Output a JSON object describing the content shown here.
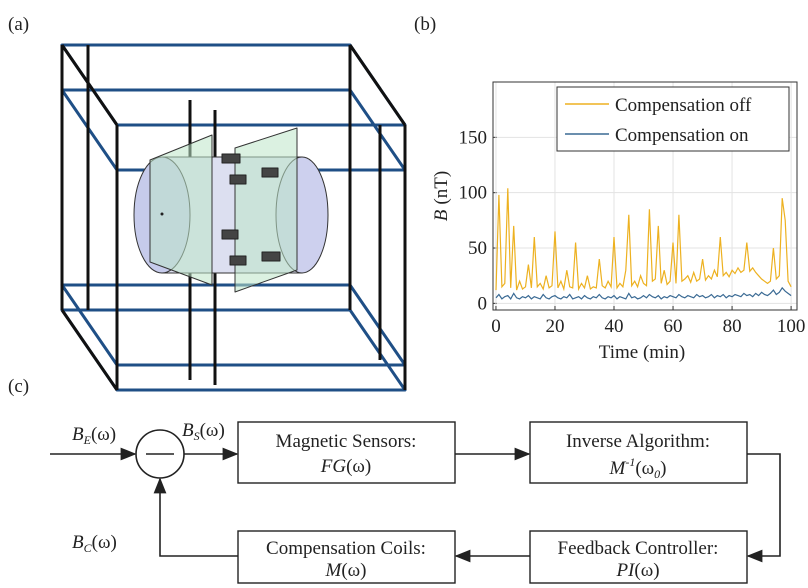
{
  "panels": {
    "a": "(a)",
    "b": "(b)",
    "c": "(c)"
  },
  "chart_data": {
    "type": "line",
    "x_label": "Time (min)",
    "y_label_symbol": "B",
    "y_label_unit": "(nT)",
    "x": [
      0,
      1,
      2,
      3,
      4,
      5,
      6,
      7,
      8,
      9,
      10,
      11,
      12,
      13,
      14,
      15,
      16,
      17,
      18,
      19,
      20,
      21,
      22,
      23,
      24,
      25,
      26,
      27,
      28,
      29,
      30,
      31,
      32,
      33,
      34,
      35,
      36,
      37,
      38,
      39,
      40,
      41,
      42,
      43,
      44,
      45,
      46,
      47,
      48,
      49,
      50,
      51,
      52,
      53,
      54,
      55,
      56,
      57,
      58,
      59,
      60,
      61,
      62,
      63,
      64,
      65,
      66,
      67,
      68,
      69,
      70,
      71,
      72,
      73,
      74,
      75,
      76,
      77,
      78,
      79,
      80,
      81,
      82,
      83,
      84,
      85,
      86,
      87,
      88,
      89,
      90,
      91,
      92,
      93,
      94,
      95,
      96,
      97,
      98,
      99,
      100
    ],
    "series": [
      {
        "name": "Compensation off",
        "color": "#EDB120",
        "values": [
          12,
          98,
          15,
          18,
          104,
          14,
          70,
          12,
          20,
          13,
          15,
          35,
          14,
          60,
          15,
          18,
          13,
          25,
          14,
          16,
          65,
          14,
          20,
          13,
          30,
          15,
          14,
          55,
          13,
          18,
          14,
          25,
          13,
          15,
          14,
          40,
          16,
          14,
          20,
          15,
          60,
          14,
          18,
          15,
          30,
          80,
          16,
          20,
          15,
          25,
          18,
          16,
          85,
          20,
          22,
          70,
          18,
          30,
          17,
          20,
          55,
          18,
          80,
          20,
          22,
          25,
          19,
          28,
          20,
          22,
          40,
          21,
          25,
          22,
          30,
          24,
          60,
          25,
          28,
          24,
          30,
          27,
          32,
          28,
          30,
          55,
          29,
          32,
          28,
          25,
          22,
          20,
          18,
          20,
          50,
          22,
          25,
          95,
          75,
          20,
          15
        ]
      },
      {
        "name": "Compensation on",
        "color": "#3A6A94",
        "values": [
          5,
          8,
          4,
          6,
          7,
          4,
          9,
          5,
          4,
          6,
          5,
          7,
          4,
          6,
          5,
          4,
          8,
          5,
          4,
          6,
          7,
          5,
          4,
          6,
          5,
          8,
          4,
          5,
          6,
          4,
          7,
          5,
          4,
          6,
          5,
          8,
          5,
          4,
          6,
          5,
          7,
          4,
          6,
          5,
          4,
          9,
          5,
          6,
          4,
          5,
          7,
          5,
          8,
          6,
          5,
          7,
          4,
          6,
          5,
          7,
          6,
          5,
          8,
          6,
          5,
          7,
          6,
          5,
          8,
          6,
          7,
          5,
          6,
          8,
          5,
          7,
          6,
          8,
          5,
          7,
          6,
          8,
          7,
          6,
          9,
          7,
          8,
          6,
          9,
          7,
          10,
          8,
          7,
          9,
          12,
          8,
          10,
          14,
          11,
          9,
          7
        ]
      }
    ],
    "xlim": [
      -1,
      102
    ],
    "ylim": [
      -6,
      200
    ],
    "xticks": [
      0,
      20,
      40,
      60,
      80,
      100
    ],
    "yticks": [
      0,
      50,
      100,
      150
    ],
    "grid": true,
    "legend": "upper right"
  },
  "diagram": {
    "nodes": [
      {
        "title": "Magnetic Sensors:",
        "expr": {
          "main": "FG",
          "rest": "(ω)"
        }
      },
      {
        "title": "Inverse Algorithm:",
        "expr": {
          "main": "M",
          "sup": "-1",
          "rest": "(ω",
          "sub": "0",
          "end": ")"
        }
      },
      {
        "title": "Compensation Coils:",
        "expr": {
          "main": "M",
          "rest": "(ω)"
        }
      },
      {
        "title": "Feedback Controller:",
        "expr": {
          "main": "PI",
          "rest": "(ω)"
        }
      }
    ],
    "signals": {
      "input": {
        "main": "B",
        "sub": "E",
        "rest": "(ω)"
      },
      "sensed": {
        "main": "B",
        "sub": "S",
        "rest": "(ω)"
      },
      "compensation": {
        "main": "B",
        "sub": "C",
        "rest": "(ω)"
      }
    }
  }
}
